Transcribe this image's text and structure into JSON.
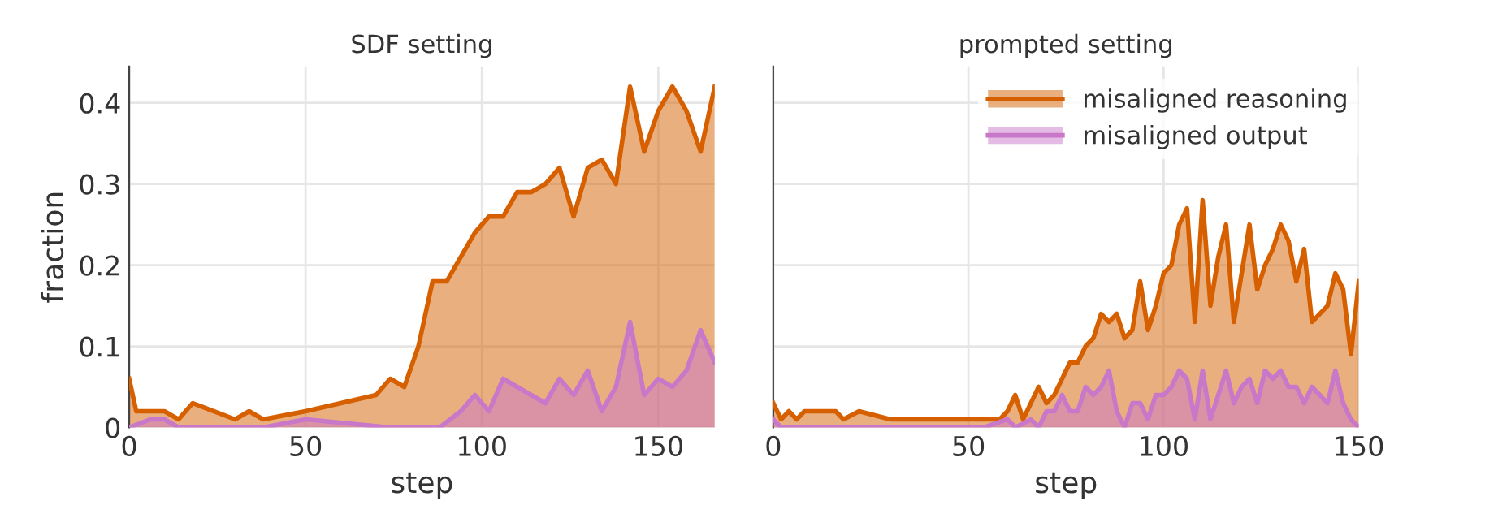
{
  "chart_data": [
    {
      "type": "area",
      "title": "SDF setting",
      "xlabel": "step",
      "ylabel": "fraction",
      "xlim": [
        0,
        166
      ],
      "ylim": [
        0,
        0.445
      ],
      "xticks": [
        0,
        50,
        100,
        150
      ],
      "yticks": [
        0,
        0.1,
        0.2,
        0.3,
        0.4
      ],
      "grid": true,
      "series": [
        {
          "color": "#d65f00",
          "x": [
            0,
            2,
            10,
            14,
            18,
            30,
            34,
            38,
            50,
            70,
            74,
            78,
            82,
            86,
            90,
            98,
            102,
            106,
            110,
            114,
            118,
            122,
            126,
            130,
            134,
            138,
            142,
            146,
            150,
            154,
            158,
            162,
            166
          ],
          "values": [
            0.06,
            0.02,
            0.02,
            0.01,
            0.03,
            0.01,
            0.02,
            0.01,
            0.02,
            0.04,
            0.06,
            0.05,
            0.1,
            0.18,
            0.18,
            0.24,
            0.26,
            0.26,
            0.29,
            0.29,
            0.3,
            0.32,
            0.26,
            0.32,
            0.33,
            0.3,
            0.42,
            0.34,
            0.39,
            0.42,
            0.39,
            0.34,
            0.42
          ]
        },
        {
          "color": "#c977c9",
          "x": [
            0,
            6,
            10,
            14,
            38,
            50,
            74,
            88,
            94,
            98,
            102,
            106,
            118,
            122,
            126,
            130,
            134,
            138,
            142,
            146,
            150,
            154,
            158,
            162,
            166
          ],
          "values": [
            0,
            0.01,
            0.01,
            0,
            0,
            0.01,
            0,
            0,
            0.02,
            0.04,
            0.02,
            0.06,
            0.03,
            0.06,
            0.04,
            0.07,
            0.02,
            0.05,
            0.13,
            0.04,
            0.06,
            0.05,
            0.07,
            0.12,
            0.08
          ]
        }
      ]
    },
    {
      "type": "area",
      "title": "prompted setting",
      "xlabel": "step",
      "xlim": [
        0,
        150
      ],
      "ylim": [
        0,
        0.445
      ],
      "xticks": [
        0,
        50,
        100,
        150
      ],
      "yticks": [
        0,
        0.1,
        0.2,
        0.3,
        0.4
      ],
      "grid": true,
      "legend": "top right",
      "tick_labels": "x",
      "series": [
        {
          "name": "misaligned reasoning",
          "color": "#d65f00",
          "x": [
            0,
            2,
            4,
            6,
            8,
            16,
            18,
            22,
            30,
            58,
            60,
            62,
            64,
            68,
            70,
            72,
            76,
            78,
            80,
            82,
            84,
            86,
            88,
            90,
            92,
            94,
            96,
            98,
            100,
            102,
            104,
            106,
            108,
            110,
            112,
            114,
            116,
            118,
            122,
            124,
            126,
            128,
            130,
            132,
            134,
            136,
            138,
            142,
            144,
            146,
            148,
            150
          ],
          "values": [
            0.03,
            0.01,
            0.02,
            0.01,
            0.02,
            0.02,
            0.01,
            0.02,
            0.01,
            0.01,
            0.02,
            0.04,
            0.01,
            0.05,
            0.03,
            0.04,
            0.08,
            0.08,
            0.1,
            0.11,
            0.14,
            0.13,
            0.14,
            0.11,
            0.12,
            0.18,
            0.12,
            0.15,
            0.19,
            0.2,
            0.25,
            0.27,
            0.13,
            0.28,
            0.15,
            0.21,
            0.25,
            0.13,
            0.25,
            0.17,
            0.2,
            0.22,
            0.25,
            0.23,
            0.18,
            0.22,
            0.13,
            0.15,
            0.19,
            0.17,
            0.09,
            0.18
          ]
        },
        {
          "name": "misaligned output",
          "color": "#c977c9",
          "x": [
            0,
            2,
            54,
            60,
            62,
            66,
            68,
            70,
            72,
            74,
            76,
            78,
            80,
            82,
            84,
            86,
            88,
            90,
            92,
            94,
            96,
            98,
            100,
            102,
            104,
            106,
            108,
            110,
            112,
            114,
            116,
            118,
            120,
            122,
            124,
            126,
            128,
            130,
            132,
            134,
            136,
            138,
            142,
            144,
            146,
            148,
            150
          ],
          "values": [
            0.01,
            0,
            0,
            0.01,
            0,
            0.01,
            0,
            0.02,
            0.02,
            0.04,
            0.02,
            0.02,
            0.05,
            0.04,
            0.05,
            0.07,
            0.02,
            0,
            0.03,
            0.03,
            0.01,
            0.04,
            0.04,
            0.05,
            0.07,
            0.06,
            0.01,
            0.07,
            0.01,
            0.04,
            0.07,
            0.03,
            0.05,
            0.06,
            0.03,
            0.07,
            0.06,
            0.07,
            0.05,
            0.05,
            0.03,
            0.05,
            0.03,
            0.07,
            0.03,
            0.01,
            0
          ]
        }
      ]
    }
  ]
}
